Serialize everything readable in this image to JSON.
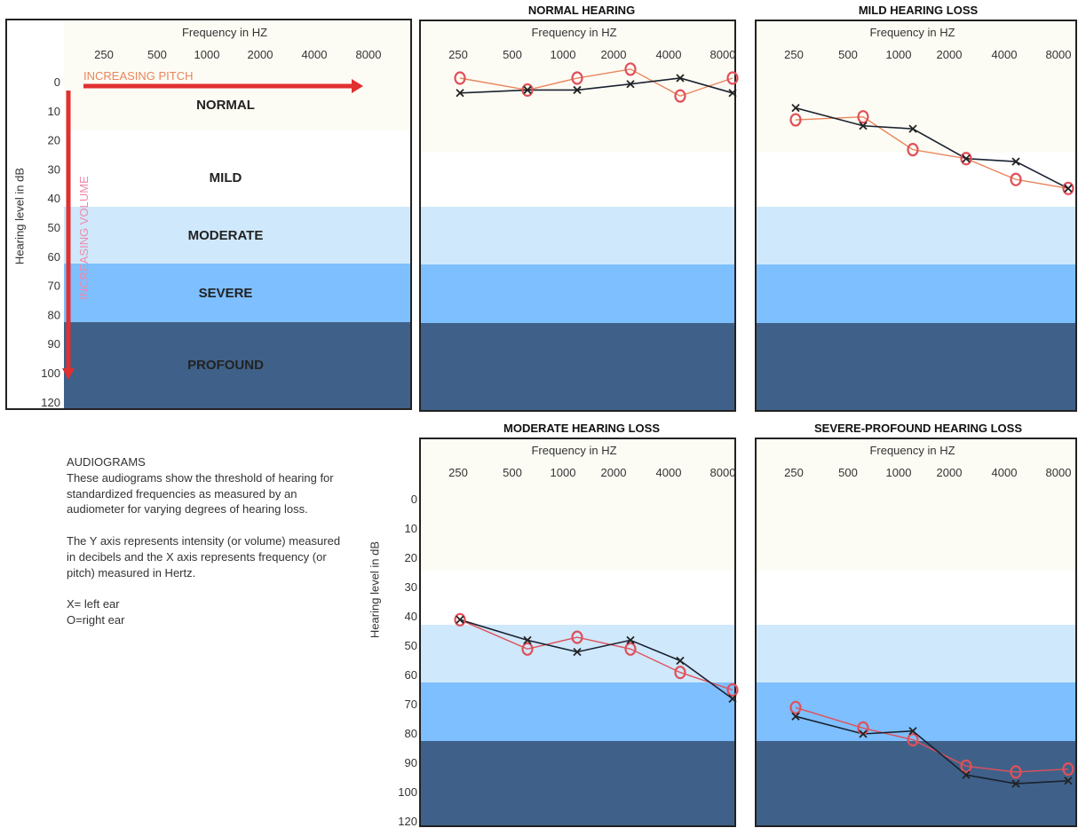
{
  "colors": {
    "normal_band": "#fdfcf4",
    "mild_band": "#ffffff",
    "moderate_band": "#cfe8fb",
    "severe_band": "#7ebfff",
    "profound_band": "#3f6189",
    "left_ear": "#222222",
    "right_ear": "#e0505a",
    "right_ear_line": "#e8855c",
    "arrow": "#e03030",
    "pitch_label": "#e8855c",
    "volume_label": "#f08aa8"
  },
  "key_chart": {
    "xlabel": "Frequency in HZ",
    "ylabel": "Hearing level in dB",
    "x_ticks": [
      "250",
      "500",
      "1000",
      "2000",
      "4000",
      "8000"
    ],
    "y_ticks": [
      "0",
      "10",
      "20",
      "30",
      "40",
      "50",
      "60",
      "70",
      "80",
      "90",
      "100",
      "120"
    ],
    "pitch_label": "INCREASING PITCH",
    "volume_label": "INCREASING VOLUME",
    "bands": [
      "NORMAL",
      "MILD",
      "MODERATE",
      "SEVERE",
      "PROFOUND"
    ]
  },
  "notes": {
    "heading": "AUDIOGRAMS",
    "para1": "These audiograms show the threshold of hearing for standardized frequencies as measured by an audiometer for varying degrees of hearing loss.",
    "para2": "The Y axis represents intensity (or volume)  measured in decibels and the X axis represents frequency  (or pitch) measured in Hertz.",
    "legend_x": "X= left ear",
    "legend_o": "O=right ear"
  },
  "chart_data": [
    {
      "type": "line",
      "title": "NORMAL HEARING",
      "xlabel": "Frequency in HZ",
      "ylabel": "",
      "categories": [
        "250",
        "500",
        "1000",
        "2000",
        "4000",
        "8000"
      ],
      "ylim": [
        0,
        120
      ],
      "series": [
        {
          "name": "X= left ear",
          "marker": "x",
          "values": [
            5,
            4,
            4,
            2,
            0,
            5
          ]
        },
        {
          "name": "O=right ear",
          "marker": "o",
          "values": [
            0,
            4,
            0,
            -3,
            6,
            0
          ]
        }
      ]
    },
    {
      "type": "line",
      "title": "MILD HEARING LOSS",
      "xlabel": "Frequency in HZ",
      "ylabel": "",
      "categories": [
        "250",
        "500",
        "1000",
        "2000",
        "4000",
        "8000"
      ],
      "ylim": [
        0,
        120
      ],
      "series": [
        {
          "name": "X= left ear",
          "marker": "x",
          "values": [
            10,
            16,
            17,
            27,
            28,
            37
          ]
        },
        {
          "name": "O=right ear",
          "marker": "o",
          "values": [
            14,
            13,
            24,
            27,
            34,
            37
          ]
        }
      ]
    },
    {
      "type": "line",
      "title": "MODERATE HEARING LOSS",
      "xlabel": "Frequency in HZ",
      "ylabel": "Hearing level in dB",
      "categories": [
        "250",
        "500",
        "1000",
        "2000",
        "4000",
        "8000"
      ],
      "y_ticks": [
        "0",
        "10",
        "20",
        "30",
        "40",
        "50",
        "60",
        "70",
        "80",
        "90",
        "100",
        "120"
      ],
      "ylim": [
        0,
        120
      ],
      "series": [
        {
          "name": "X= left ear",
          "marker": "x",
          "values": [
            41,
            48,
            52,
            48,
            55,
            68
          ]
        },
        {
          "name": "O=right ear",
          "marker": "o",
          "values": [
            41,
            51,
            47,
            51,
            59,
            65
          ]
        }
      ]
    },
    {
      "type": "line",
      "title": "SEVERE-PROFOUND HEARING LOSS",
      "xlabel": "Frequency in HZ",
      "ylabel": "",
      "categories": [
        "250",
        "500",
        "1000",
        "2000",
        "4000",
        "8000"
      ],
      "ylim": [
        0,
        120
      ],
      "series": [
        {
          "name": "X= left ear",
          "marker": "x",
          "values": [
            74,
            80,
            79,
            94,
            97,
            96
          ]
        },
        {
          "name": "O=right ear",
          "marker": "o",
          "values": [
            71,
            78,
            82,
            91,
            93,
            92
          ]
        }
      ]
    }
  ]
}
